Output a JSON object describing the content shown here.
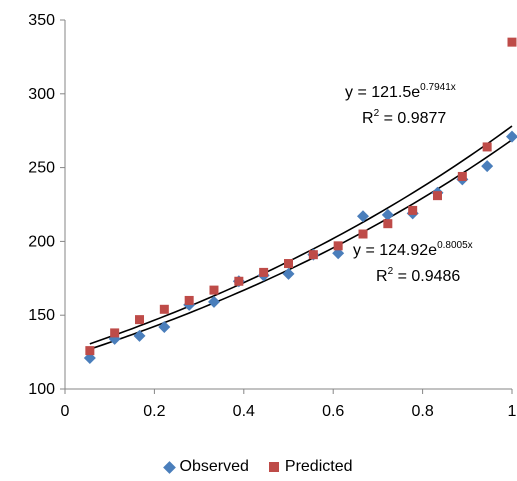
{
  "chart_data": {
    "type": "scatter",
    "xlim": [
      0,
      1
    ],
    "ylim": [
      100,
      350
    ],
    "x_ticks": [
      "0",
      "0.2",
      "0.4",
      "0.6",
      "0.8",
      "1"
    ],
    "y_ticks": [
      "100",
      "150",
      "200",
      "250",
      "300",
      "350"
    ],
    "x_tick_values": [
      0,
      0.2,
      0.4,
      0.6,
      0.8,
      1
    ],
    "y_tick_values": [
      100,
      150,
      200,
      250,
      300,
      350
    ],
    "grid": false,
    "legend_position": "bottom",
    "series": [
      {
        "name": "Observed",
        "marker": "diamond",
        "color": "#4a7ebb",
        "points": [
          [
            0.0556,
            121
          ],
          [
            0.1111,
            134
          ],
          [
            0.1667,
            136
          ],
          [
            0.2222,
            142
          ],
          [
            0.2778,
            157
          ],
          [
            0.3333,
            159
          ],
          [
            0.3889,
            173
          ],
          [
            0.4444,
            177
          ],
          [
            0.5,
            178
          ],
          [
            0.5556,
            191
          ],
          [
            0.6111,
            192
          ],
          [
            0.6667,
            217
          ],
          [
            0.7222,
            218
          ],
          [
            0.7778,
            219
          ],
          [
            0.8333,
            233
          ],
          [
            0.8889,
            242
          ],
          [
            0.9444,
            251
          ],
          [
            1.0,
            271
          ]
        ]
      },
      {
        "name": "Predicted",
        "marker": "square",
        "color": "#be4b48",
        "points": [
          [
            0.0556,
            126
          ],
          [
            0.1111,
            138
          ],
          [
            0.1667,
            147
          ],
          [
            0.2222,
            154
          ],
          [
            0.2778,
            160
          ],
          [
            0.3333,
            167
          ],
          [
            0.3889,
            173
          ],
          [
            0.4444,
            179
          ],
          [
            0.5,
            185
          ],
          [
            0.5556,
            191
          ],
          [
            0.6111,
            197
          ],
          [
            0.6667,
            205
          ],
          [
            0.7222,
            212
          ],
          [
            0.7778,
            221
          ],
          [
            0.8333,
            231
          ],
          [
            0.8889,
            244
          ],
          [
            0.9444,
            264
          ],
          [
            1.0,
            335
          ]
        ]
      }
    ],
    "trendlines": [
      {
        "a": 121.5,
        "b": 0.7941,
        "series": "Observed"
      },
      {
        "a": 124.92,
        "b": 0.8005,
        "series": "Predicted"
      }
    ],
    "annotations": [
      {
        "eq_base": "y = 121.5e",
        "eq_exp": "0.7941x",
        "r2_base": "R",
        "r2_exp": "2",
        "r2_val": " = 0.9877"
      },
      {
        "eq_base": "y = 124.92e",
        "eq_exp": "0.8005x",
        "r2_base": "R",
        "r2_exp": "2",
        "r2_val": " = 0.9486"
      }
    ]
  },
  "legend": {
    "observed_label": "Observed",
    "predicted_label": "Predicted"
  },
  "colors": {
    "observed": "#4a7ebb",
    "predicted": "#be4b48",
    "axis": "#868686",
    "trendline": "#000000"
  }
}
